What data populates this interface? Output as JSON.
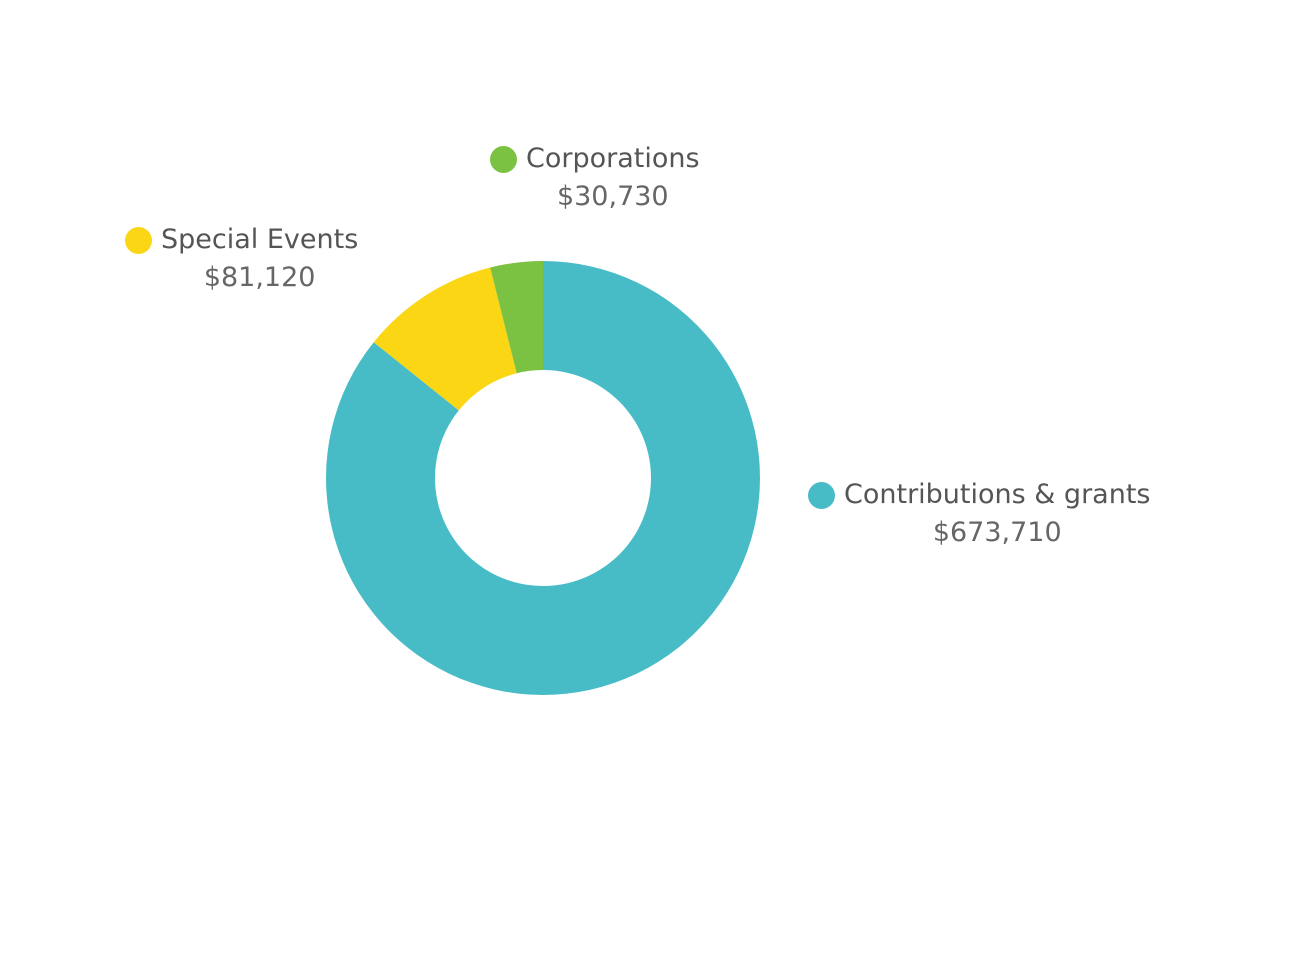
{
  "chart_data": {
    "type": "pie",
    "title": "",
    "donut": true,
    "categories": [
      "Contributions & grants",
      "Special Events",
      "Corporations"
    ],
    "values": [
      673710,
      81120,
      30730
    ],
    "value_labels": [
      "$673,710",
      "$81,120",
      "$30,730"
    ],
    "colors": [
      "#48BCC6",
      "#FBD614",
      "#7BC142"
    ],
    "legend": "labels beside slices",
    "grid": false
  }
}
